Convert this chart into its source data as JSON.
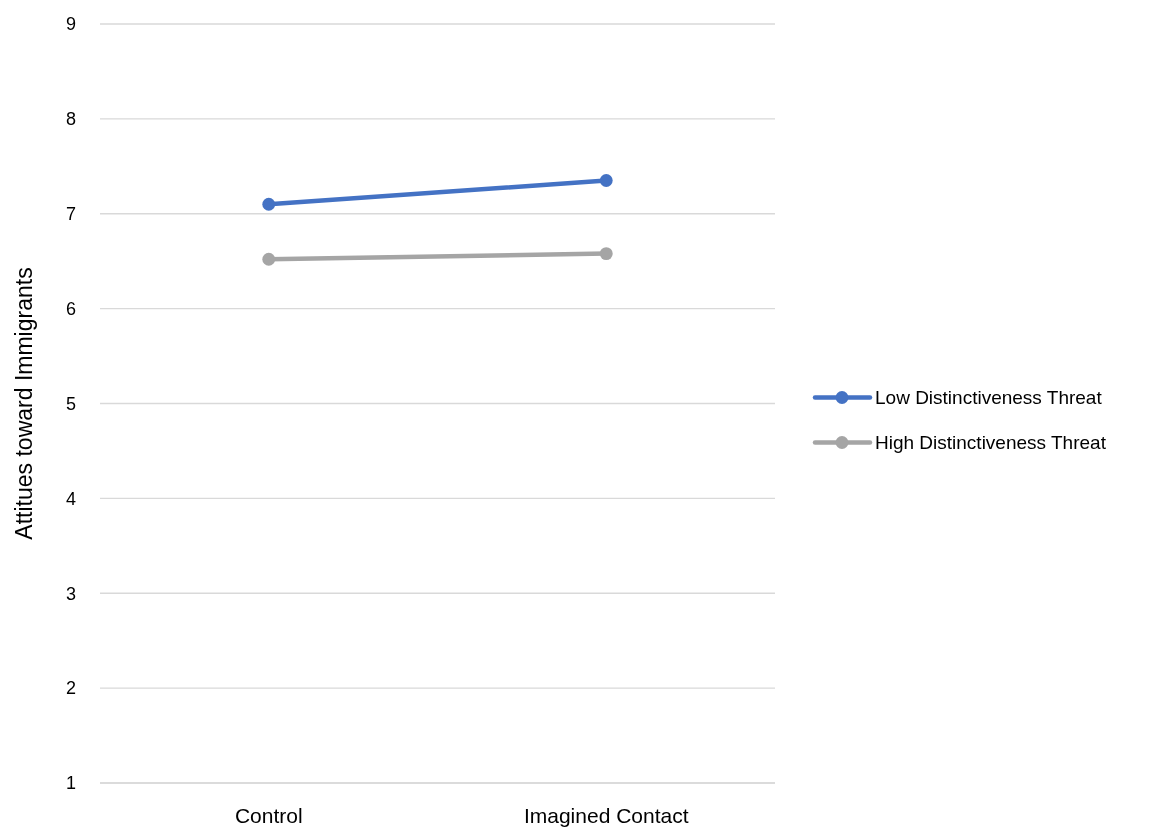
{
  "chart_data": {
    "type": "line",
    "ylabel": "Attitues toward Immigrants",
    "categories": [
      "Control",
      "Imagined Contact"
    ],
    "series": [
      {
        "name": "Low Distinctiveness Threat",
        "color": "#4472c4",
        "values": [
          7.1,
          7.35
        ]
      },
      {
        "name": "High Distinctiveness Threat",
        "color": "#a5a5a5",
        "values": [
          6.52,
          6.58
        ]
      }
    ],
    "ylim": [
      1,
      9
    ],
    "yticks": [
      1,
      2,
      3,
      4,
      5,
      6,
      7,
      8,
      9
    ],
    "grid": "y",
    "legend": "right",
    "marker": "circle",
    "line_style": "solid"
  }
}
